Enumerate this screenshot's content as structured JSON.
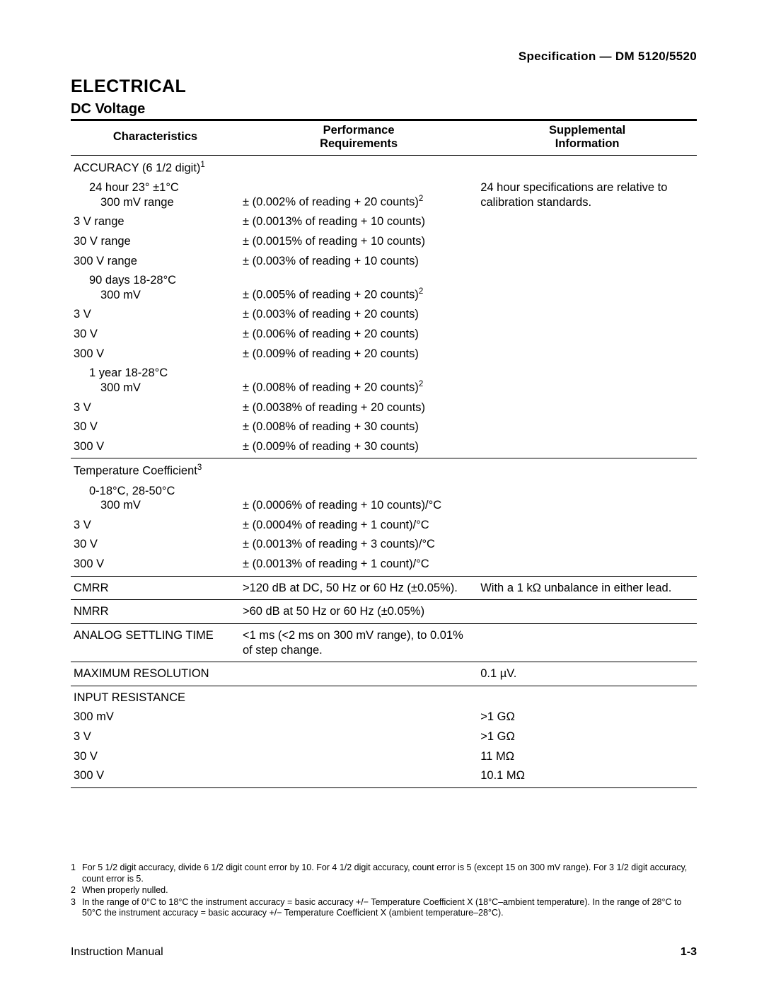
{
  "header": {
    "spec": "Specification — DM 5120/5520"
  },
  "h1": "ELECTRICAL",
  "h2": "DC Voltage",
  "columns": {
    "c1": "Characteristics",
    "c2": "Performance\nRequirements",
    "c3": "Supplemental\nInformation"
  },
  "sections": {
    "accuracy_title": "ACCURACY (6 1/2 digit)",
    "accuracy_sup": "1",
    "grp1": {
      "title": "24 hour 23° ±1°C",
      "note": "24 hour specifications are relative to calibration standards.",
      "rows": [
        {
          "c": "300 mV range",
          "p": "± (0.002% of reading + 20 counts)",
          "s": "2"
        },
        {
          "c": "3 V range",
          "p": "± (0.0013% of reading + 10 counts)"
        },
        {
          "c": "30 V range",
          "p": "± (0.0015% of reading + 10 counts)"
        },
        {
          "c": "300 V range",
          "p": "± (0.003% of reading + 10 counts)"
        }
      ]
    },
    "grp2": {
      "title": "90 days 18-28°C",
      "rows": [
        {
          "c": "300 mV",
          "p": "± (0.005% of reading + 20 counts)",
          "s": "2"
        },
        {
          "c": "3 V",
          "p": "± (0.003% of reading + 20 counts)"
        },
        {
          "c": "30 V",
          "p": "± (0.006% of reading + 20 counts)"
        },
        {
          "c": "300 V",
          "p": "± (0.009% of reading + 20 counts)"
        }
      ]
    },
    "grp3": {
      "title": "1 year 18-28°C",
      "rows": [
        {
          "c": "300 mV",
          "p": "± (0.008% of reading + 20 counts)",
          "s": "2"
        },
        {
          "c": "3 V",
          "p": "± (0.0038% of reading + 20 counts)"
        },
        {
          "c": "30 V",
          "p": "± (0.008% of reading + 30 counts)"
        },
        {
          "c": "300 V",
          "p": "± (0.009% of reading + 30 counts)"
        }
      ]
    },
    "tempco": {
      "title": "Temperature Coefficient",
      "sup": "3",
      "subtitle": "0-18°C,  28-50°C",
      "rows": [
        {
          "c": "300 mV",
          "p": "± (0.0006% of reading + 10 counts)/°C"
        },
        {
          "c": "3 V",
          "p": "± (0.0004% of reading + 1 count)/°C"
        },
        {
          "c": "30 V",
          "p": "± (0.0013% of reading + 3 counts)/°C"
        },
        {
          "c": "300 V",
          "p": "± (0.0013% of reading + 1 count)/°C"
        }
      ]
    },
    "cmrr": {
      "c": "CMRR",
      "p": ">120 dB at DC, 50 Hz or 60 Hz (±0.05%).",
      "s": "With a 1 kΩ unbalance in either lead."
    },
    "nmrr": {
      "c": "NMRR",
      "p": ">60 dB at 50 Hz or 60 Hz (±0.05%)"
    },
    "settling": {
      "c": "ANALOG SETTLING TIME",
      "p": "<1 ms (<2 ms on 300 mV range), to 0.01% of step change."
    },
    "maxres": {
      "c": "MAXIMUM RESOLUTION",
      "s": "0.1 µV."
    },
    "inres": {
      "title": "INPUT RESISTANCE",
      "rows": [
        {
          "c": "300 mV",
          "s": ">1 GΩ"
        },
        {
          "c": "3 V",
          "s": ">1 GΩ"
        },
        {
          "c": "30 V",
          "s": "11 MΩ"
        },
        {
          "c": "300 V",
          "s": "10.1 MΩ"
        }
      ]
    }
  },
  "footnotes": {
    "1": "For 5 1/2 digit accuracy, divide 6 1/2 digit count error by 10. For 4 1/2 digit accuracy, count error is 5 (except 15 on 300 mV range). For 3 1/2 digit accuracy, count error is 5.",
    "2": "When properly nulled.",
    "3": "In the range of 0°C to 18°C the instrument accuracy = basic accuracy +/− Temperature Coefficient X (18°C–ambient temperature). In the range of 28°C to 50°C the instrument accuracy = basic accuracy +/− Temperature Coefficient X (ambient temperature–28°C)."
  },
  "footer": {
    "left": "Instruction Manual",
    "right": "1-3"
  }
}
